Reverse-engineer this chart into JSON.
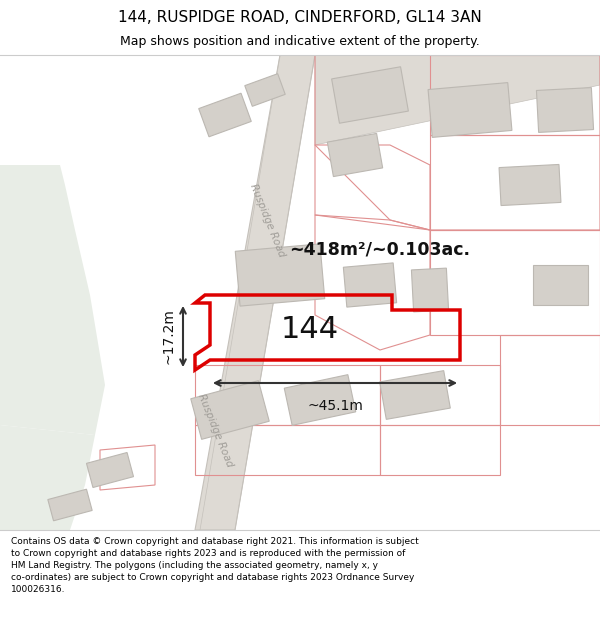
{
  "title": "144, RUSPIDGE ROAD, CINDERFORD, GL14 3AN",
  "subtitle": "Map shows position and indicative extent of the property.",
  "footer": "Contains OS data © Crown copyright and database right 2021. This information is subject\nto Crown copyright and database rights 2023 and is reproduced with the permission of\nHM Land Registry. The polygons (including the associated geometry, namely x, y\nco-ordinates) are subject to Crown copyright and database rights 2023 Ordnance Survey\n100026316.",
  "area_label": "~418m²/~0.103ac.",
  "number_label": "144",
  "width_label": "~45.1m",
  "height_label": "~17.2m",
  "road_label": "Ruspidge Road",
  "bg_color": "#f0eeeb",
  "green_color": "#e8ede6",
  "road_fill": "#dedad4",
  "road_edge": "#c5c1bb",
  "building_fill": "#d4d0ca",
  "building_edge": "#bcb8b2",
  "plot_edge": "#e09090",
  "highlight_edge": "#dd0000",
  "arrow_color": "#333333",
  "text_dark": "#111111",
  "text_road": "#a09d98"
}
